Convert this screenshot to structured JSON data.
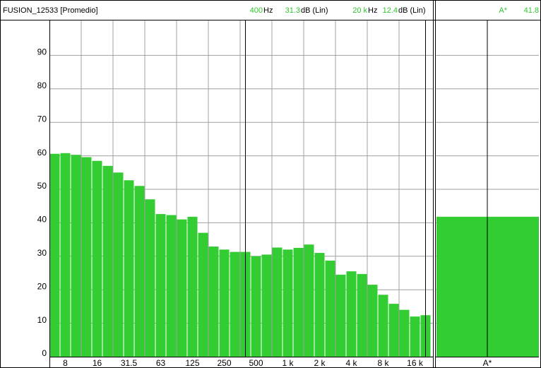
{
  "chart_data": {
    "type": "bar",
    "title": "FUSION_12533 [Promedio]",
    "categories": [
      null,
      "8",
      null,
      null,
      "16",
      null,
      null,
      "31.5",
      null,
      null,
      "63",
      null,
      null,
      "125",
      null,
      null,
      "250",
      null,
      null,
      "500",
      null,
      null,
      "1 k",
      null,
      null,
      "2 k",
      null,
      null,
      "4 k",
      null,
      null,
      "8 k",
      null,
      null,
      "16 k",
      null
    ],
    "values": [
      60.6,
      60.8,
      60.3,
      59.6,
      58.5,
      57.0,
      55.0,
      52.7,
      51.0,
      47.0,
      42.6,
      42.3,
      41.0,
      41.8,
      37.0,
      32.9,
      32.0,
      31.3,
      31.3,
      30.0,
      30.5,
      32.6,
      32.0,
      32.5,
      33.5,
      31.0,
      28.7,
      24.5,
      25.5,
      24.7,
      21.5,
      18.5,
      15.8,
      14.0,
      12.0,
      12.4
    ],
    "color": "#33cc33",
    "ylim": [
      0,
      100
    ],
    "yticks": [
      0,
      10,
      20,
      30,
      40,
      50,
      60,
      70,
      80,
      90
    ],
    "grid": true,
    "cursors": [
      {
        "index": 18,
        "frequency": "400",
        "frequency_unit": "Hz",
        "level_unit": "dB (Lin)"
      },
      {
        "index": 35,
        "frequency": "20 k",
        "frequency_unit": "Hz",
        "level_unit": "dB (Lin)"
      }
    ],
    "summary": {
      "categories": [
        "A*"
      ],
      "values": [
        41.8
      ]
    }
  }
}
